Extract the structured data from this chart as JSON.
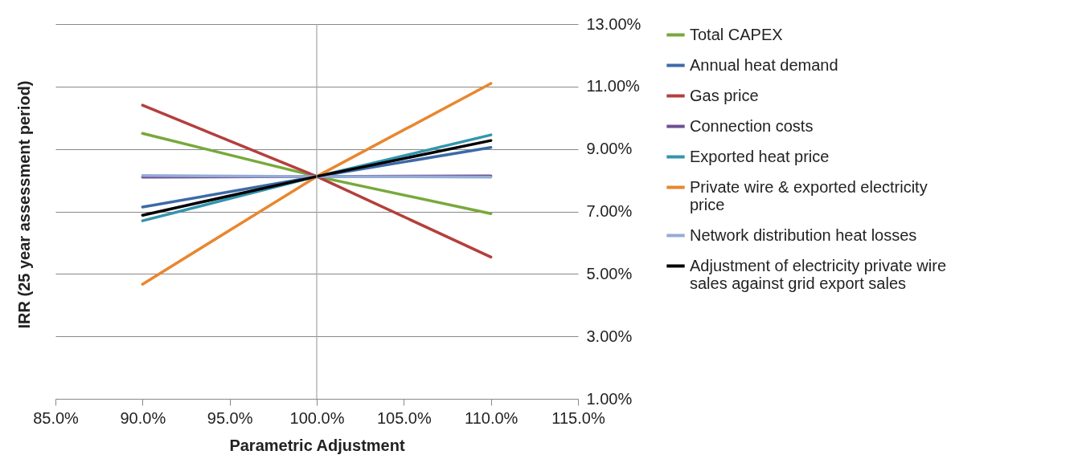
{
  "chart_data": {
    "type": "line",
    "xlabel": "Parametric Adjustment",
    "ylabel": "IRR (25 year assessment period)",
    "x": [
      90,
      100,
      110
    ],
    "xlim": [
      85,
      115
    ],
    "xticks": [
      {
        "value": 85,
        "label": "85.0%"
      },
      {
        "value": 90,
        "label": "90.0%"
      },
      {
        "value": 95,
        "label": "95.0%"
      },
      {
        "value": 100,
        "label": "100.0%"
      },
      {
        "value": 105,
        "label": "105.0%"
      },
      {
        "value": 110,
        "label": "110.0%"
      },
      {
        "value": 115,
        "label": "115.0%"
      }
    ],
    "ylim": [
      1,
      13
    ],
    "yticks": [
      {
        "value": 1,
        "label": "1.00%"
      },
      {
        "value": 3,
        "label": "3.00%"
      },
      {
        "value": 5,
        "label": "5.00%"
      },
      {
        "value": 7,
        "label": "7.00%"
      },
      {
        "value": 9,
        "label": "9.00%"
      },
      {
        "value": 11,
        "label": "11.00%"
      },
      {
        "value": 13,
        "label": "13.00%"
      }
    ],
    "grid": "y",
    "legend": "right",
    "marker": "none",
    "line_style": "solid",
    "ref_lines": [
      {
        "axis": "x",
        "value": 100,
        "color": "#a6a6a6"
      }
    ],
    "series": [
      {
        "name": "Total CAPEX",
        "color": "#77a93b",
        "values": [
          9.5,
          8.12,
          6.93
        ]
      },
      {
        "name": "Annual heat demand",
        "color": "#3c6aa8",
        "values": [
          7.14,
          8.12,
          9.05
        ]
      },
      {
        "name": "Gas price",
        "color": "#b43f3c",
        "values": [
          10.4,
          8.12,
          5.54
        ]
      },
      {
        "name": "Connection costs",
        "color": "#6c4f96",
        "values": [
          8.1,
          8.12,
          8.14
        ]
      },
      {
        "name": "Exported heat price",
        "color": "#3295ad",
        "values": [
          6.7,
          8.12,
          9.45
        ]
      },
      {
        "name": "Private wire & exported electricity price",
        "color": "#e8872f",
        "values": [
          4.67,
          8.12,
          11.1
        ]
      },
      {
        "name": "Network distribution heat losses",
        "color": "#94acd6",
        "values": [
          8.15,
          8.12,
          8.1
        ]
      },
      {
        "name": "Adjustment of electricity private wire sales against grid export sales",
        "color": "#000000",
        "values": [
          6.88,
          8.12,
          9.27
        ]
      }
    ]
  }
}
